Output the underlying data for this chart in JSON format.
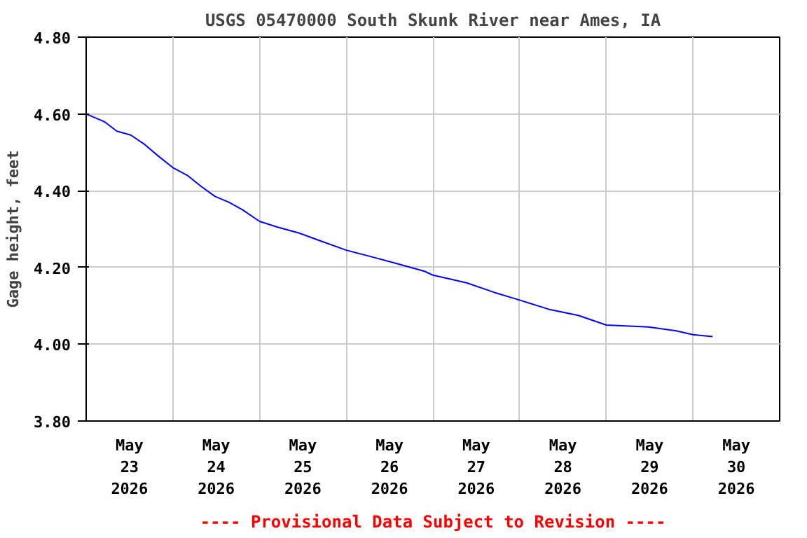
{
  "chart_data": {
    "type": "line",
    "title": "USGS 05470000 South Skunk River near Ames, IA",
    "ylabel": "Gage height, feet",
    "x": [
      "2026-05-23T00:00",
      "2026-05-23T05:00",
      "2026-05-23T08:30",
      "2026-05-23T12:20",
      "2026-05-23T16:15",
      "2026-05-23T20:00",
      "2026-05-24T00:00",
      "2026-05-24T04:00",
      "2026-05-24T08:00",
      "2026-05-24T11:40",
      "2026-05-24T15:30",
      "2026-05-24T19:20",
      "2026-05-25T00:00",
      "2026-05-25T05:00",
      "2026-05-25T10:50",
      "2026-05-25T16:40",
      "2026-05-26T00:00",
      "2026-05-26T06:10",
      "2026-05-26T14:00",
      "2026-05-26T21:40",
      "2026-05-27T00:00",
      "2026-05-27T09:20",
      "2026-05-27T17:00",
      "2026-05-28T00:00",
      "2026-05-28T08:30",
      "2026-05-28T16:15",
      "2026-05-29T00:00",
      "2026-05-29T11:40",
      "2026-05-29T19:20",
      "2026-05-30T00:00",
      "2026-05-30T05:25"
    ],
    "series": [
      {
        "color": "#0000ff",
        "values": [
          4.6,
          4.58,
          4.555,
          4.545,
          4.52,
          4.49,
          4.46,
          4.44,
          4.41,
          4.385,
          4.37,
          4.35,
          4.32,
          4.305,
          4.29,
          4.27,
          4.245,
          4.23,
          4.21,
          4.19,
          4.18,
          4.16,
          4.135,
          4.115,
          4.09,
          4.075,
          4.05,
          4.045,
          4.035,
          4.025,
          4.02
        ]
      }
    ],
    "xlim": [
      "2026-05-23T00:00",
      "2026-05-31T00:00"
    ],
    "xticks": [
      {
        "value": "2026-05-23T12:00",
        "label": "May\n23\n2026"
      },
      {
        "value": "2026-05-24T12:00",
        "label": "May\n24\n2026"
      },
      {
        "value": "2026-05-25T12:00",
        "label": "May\n25\n2026"
      },
      {
        "value": "2026-05-26T12:00",
        "label": "May\n26\n2026"
      },
      {
        "value": "2026-05-27T12:00",
        "label": "May\n27\n2026"
      },
      {
        "value": "2026-05-28T12:00",
        "label": "May\n28\n2026"
      },
      {
        "value": "2026-05-29T12:00",
        "label": "May\n29\n2026"
      },
      {
        "value": "2026-05-30T12:00",
        "label": "May\n30\n2026"
      },
      {
        "value": "2026-05-24T00:00",
        "label": null
      },
      {
        "value": "2026-05-25T00:00",
        "label": null
      },
      {
        "value": "2026-05-26T00:00",
        "label": null
      },
      {
        "value": "2026-05-27T00:00",
        "label": null
      },
      {
        "value": "2026-05-28T00:00",
        "label": null
      },
      {
        "value": "2026-05-29T00:00",
        "label": null
      },
      {
        "value": "2026-05-30T00:00",
        "label": null
      }
    ],
    "ylim": [
      3.8,
      4.8
    ],
    "yticks": [
      {
        "value": 3.8,
        "label": "3.80"
      },
      {
        "value": 4.0,
        "label": "4.00"
      },
      {
        "value": 4.2,
        "label": "4.20"
      },
      {
        "value": 4.4,
        "label": "4.40"
      },
      {
        "value": 4.6,
        "label": "4.60"
      },
      {
        "value": 4.8,
        "label": "4.80"
      }
    ],
    "grid": true,
    "annotations": [
      "---- Provisional Data Subject to Revision ----"
    ]
  }
}
